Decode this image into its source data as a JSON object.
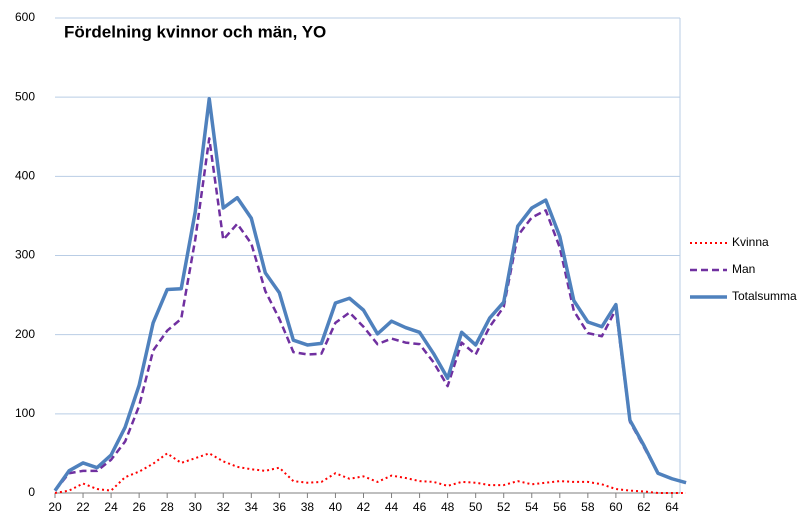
{
  "chart_data": {
    "type": "line",
    "title": "Fördelning kvinnor och män, YO",
    "x": [
      20,
      21,
      22,
      23,
      24,
      25,
      26,
      27,
      28,
      29,
      30,
      31,
      32,
      33,
      34,
      35,
      36,
      37,
      38,
      39,
      40,
      41,
      42,
      43,
      44,
      45,
      46,
      47,
      48,
      49,
      50,
      51,
      52,
      53,
      54,
      55,
      56,
      57,
      58,
      59,
      60,
      61,
      62,
      63,
      64,
      65
    ],
    "series": [
      {
        "name": "Kvinna",
        "color": "#ff0000",
        "style": "dotted",
        "values": [
          0,
          3,
          12,
          5,
          3,
          20,
          27,
          37,
          50,
          38,
          44,
          50,
          40,
          33,
          30,
          28,
          32,
          15,
          13,
          14,
          25,
          18,
          21,
          14,
          22,
          19,
          15,
          14,
          9,
          14,
          13,
          10,
          10,
          15,
          11,
          13,
          15,
          14,
          14,
          11,
          5,
          3,
          2,
          0,
          0,
          0
        ]
      },
      {
        "name": "Man",
        "color": "#7030a0",
        "style": "dashed",
        "values": [
          3,
          25,
          28,
          28,
          42,
          65,
          110,
          180,
          205,
          220,
          320,
          448,
          320,
          340,
          315,
          255,
          220,
          178,
          175,
          176,
          215,
          228,
          210,
          188,
          195,
          190,
          188,
          165,
          135,
          190,
          175,
          210,
          235,
          325,
          348,
          357,
          310,
          230,
          202,
          198,
          232,
          90,
          58,
          25,
          18,
          13
        ]
      },
      {
        "name": "Totalsumma",
        "color": "#4f81bd",
        "style": "solid",
        "values": [
          3,
          28,
          38,
          32,
          48,
          83,
          136,
          215,
          257,
          258,
          355,
          498,
          360,
          373,
          347,
          278,
          253,
          193,
          187,
          189,
          240,
          246,
          231,
          201,
          217,
          209,
          203,
          176,
          145,
          203,
          187,
          221,
          241,
          337,
          360,
          370,
          324,
          243,
          216,
          210,
          238,
          92,
          60,
          25,
          18,
          13
        ]
      }
    ],
    "xlim": [
      20,
      65
    ],
    "xticks": [
      20,
      22,
      24,
      26,
      28,
      30,
      32,
      34,
      36,
      38,
      40,
      42,
      44,
      46,
      48,
      50,
      52,
      54,
      56,
      58,
      60,
      62,
      64
    ],
    "ylim": [
      0,
      600
    ],
    "yticks": [
      0,
      100,
      200,
      300,
      400,
      500,
      600
    ],
    "grid": true,
    "legend": "right"
  }
}
